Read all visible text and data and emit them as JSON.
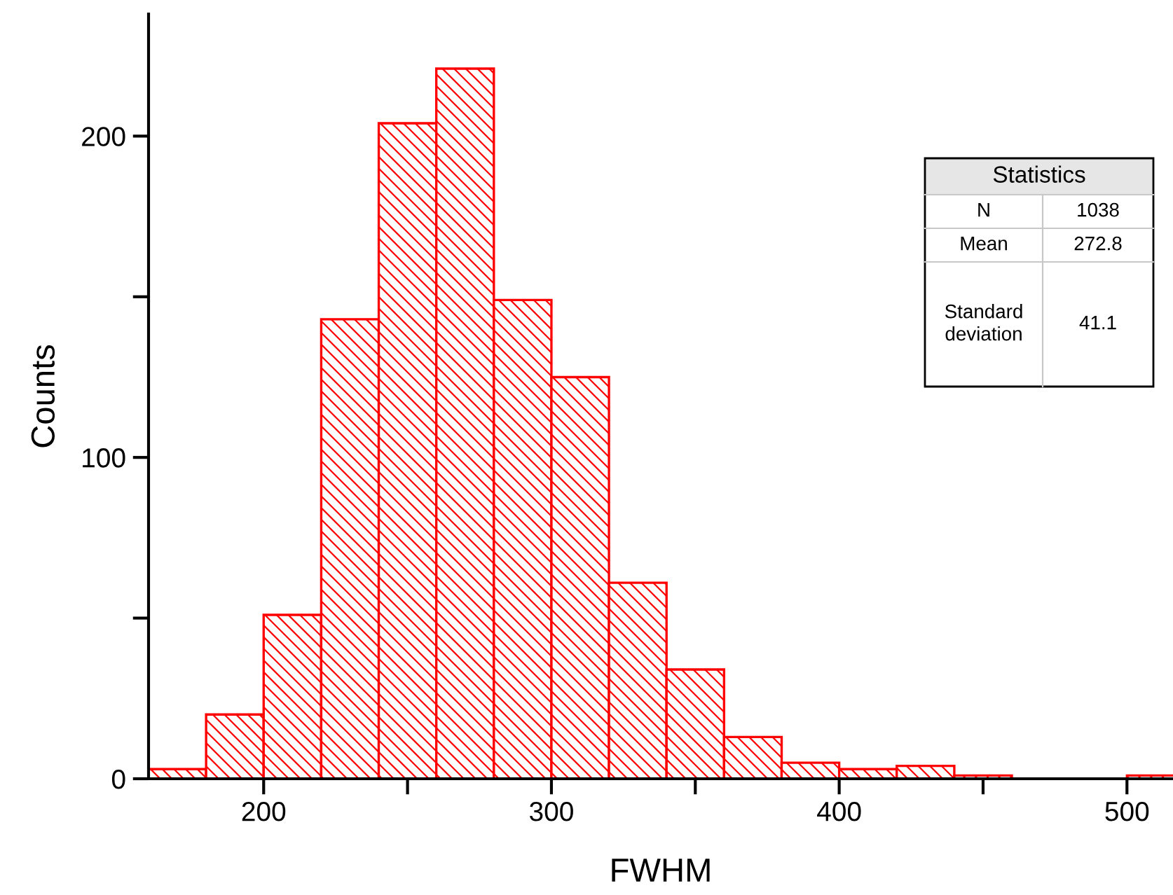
{
  "chart_data": {
    "type": "histogram",
    "xlabel": "FWHM",
    "ylabel": "Counts",
    "color": "#ff0000",
    "bins": [
      160,
      180,
      200,
      220,
      240,
      260,
      280,
      300,
      320,
      340,
      360,
      380,
      400,
      420,
      440,
      460,
      480,
      500,
      520
    ],
    "values": [
      3,
      20,
      51,
      143,
      204,
      221,
      149,
      125,
      61,
      34,
      13,
      5,
      3,
      4,
      1,
      0,
      0,
      1
    ],
    "xlim": [
      160,
      516
    ],
    "ylim": [
      0,
      238
    ],
    "xticks": [
      200,
      {
        "value": 250,
        "label": null
      },
      300,
      {
        "value": 350,
        "label": null
      },
      400,
      {
        "value": 450,
        "label": null
      },
      500
    ],
    "yticks": [
      0,
      {
        "value": 50,
        "label": null
      },
      100,
      {
        "value": 150,
        "label": null
      },
      200
    ],
    "grid": false,
    "legend": false,
    "annotations": [
      "Statistics",
      "N",
      "1038",
      "Mean",
      "272.8",
      "Standard\ndeviation",
      "41.1"
    ]
  }
}
